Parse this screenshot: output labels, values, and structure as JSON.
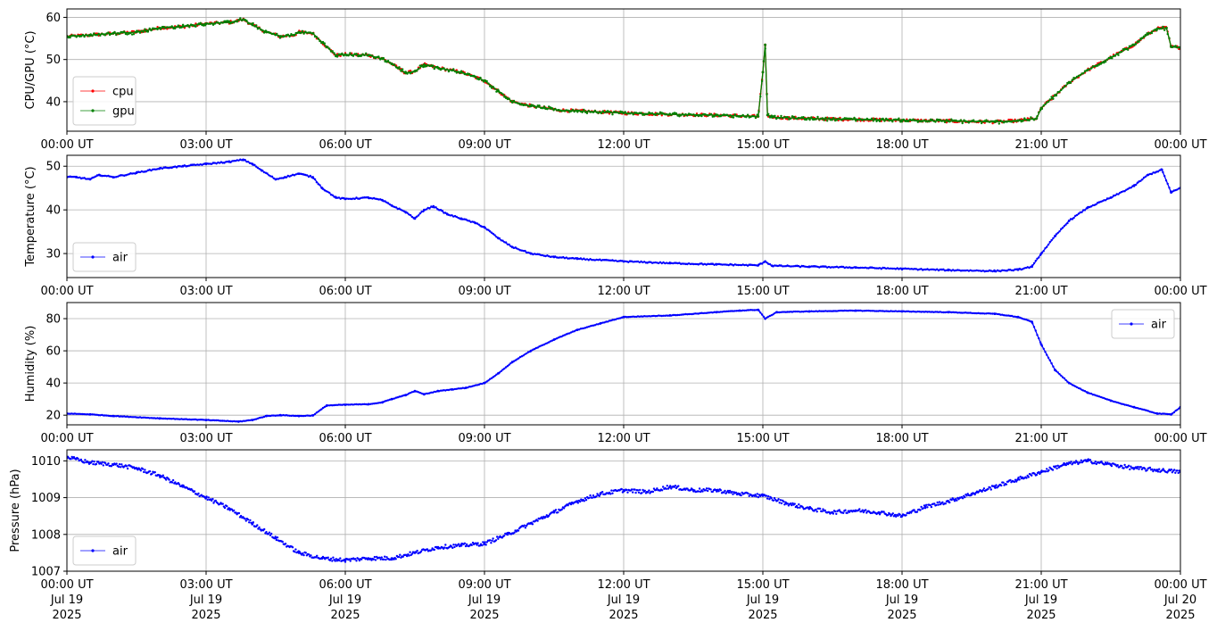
{
  "chart_data": [
    {
      "type": "line",
      "ylabel": "CPU/GPU (°C)",
      "ylim": [
        33,
        62
      ],
      "yticks": [
        40,
        50,
        60
      ],
      "legend": "lower-left",
      "grid": true,
      "series": [
        {
          "name": "cpu",
          "color": "#ff0000",
          "x": [
            0,
            0.5,
            1,
            1.5,
            2,
            2.5,
            3,
            3.5,
            3.8,
            4,
            4.3,
            4.6,
            4.9,
            5,
            5.3,
            5.6,
            5.8,
            6,
            6.5,
            6.8,
            7,
            7.3,
            7.5,
            7.7,
            8,
            8.5,
            9,
            9.3,
            9.6,
            10,
            10.3,
            10.6,
            11,
            12,
            13,
            14,
            14.9,
            15,
            15.05,
            15.1,
            15.2,
            16,
            17,
            18,
            19,
            20,
            20.5,
            20.9,
            21,
            21.3,
            21.6,
            22,
            22.5,
            23,
            23.3,
            23.5,
            23.7,
            23.8,
            24
          ],
          "y": [
            55.5,
            55.8,
            56.2,
            56.5,
            57.5,
            57.8,
            58.5,
            58.8,
            59.5,
            58.2,
            56.5,
            55.5,
            55.8,
            56.5,
            56.2,
            53,
            51,
            51.2,
            51,
            50.2,
            49,
            46.8,
            47.2,
            48.8,
            48,
            47,
            45,
            42.5,
            40,
            39,
            38.5,
            38,
            37.8,
            37.3,
            37,
            36.8,
            36.5,
            47,
            53.5,
            36.8,
            36.3,
            36,
            35.8,
            35.6,
            35.4,
            35.2,
            35.5,
            36,
            38.5,
            41.5,
            44.5,
            47.5,
            50.5,
            53.5,
            56,
            57.3,
            57.5,
            53,
            52.8
          ]
        },
        {
          "name": "gpu",
          "color": "#008000",
          "x": [
            0,
            0.5,
            1,
            1.5,
            2,
            2.5,
            3,
            3.5,
            3.8,
            4,
            4.3,
            4.6,
            4.9,
            5,
            5.3,
            5.6,
            5.8,
            6,
            6.5,
            6.8,
            7,
            7.3,
            7.5,
            7.7,
            8,
            8.5,
            9,
            9.3,
            9.6,
            10,
            10.3,
            10.6,
            11,
            12,
            13,
            14,
            14.9,
            15,
            15.05,
            15.1,
            15.2,
            16,
            17,
            18,
            19,
            20,
            20.5,
            20.9,
            21,
            21.3,
            21.6,
            22,
            22.5,
            23,
            23.3,
            23.5,
            23.7,
            23.8,
            24
          ],
          "y": [
            55.5,
            55.8,
            56.2,
            56.5,
            57.5,
            57.8,
            58.5,
            58.8,
            59.5,
            58.2,
            56.5,
            55.5,
            55.8,
            56.5,
            56.2,
            53,
            51,
            51.2,
            51,
            50.2,
            49,
            46.8,
            47.2,
            48.8,
            48,
            47,
            45,
            42.5,
            40,
            39,
            38.5,
            38,
            37.8,
            37.3,
            37,
            36.8,
            36.5,
            47,
            53.5,
            36.8,
            36.3,
            36,
            35.8,
            35.6,
            35.4,
            35.2,
            35.5,
            36,
            38.5,
            41.5,
            44.5,
            47.5,
            50.5,
            53.5,
            56,
            57.3,
            57.5,
            53,
            52.8
          ]
        }
      ]
    },
    {
      "type": "line",
      "ylabel": "Temperature (°C)",
      "ylim": [
        24.5,
        52.5
      ],
      "yticks": [
        30,
        40,
        50
      ],
      "legend": "lower-left",
      "grid": true,
      "series": [
        {
          "name": "air",
          "color": "#0000ff",
          "x": [
            0,
            0.2,
            0.5,
            0.7,
            1,
            1.5,
            2,
            2.5,
            3,
            3.5,
            3.8,
            4,
            4.2,
            4.5,
            4.7,
            5,
            5.3,
            5.5,
            5.8,
            6,
            6.5,
            6.8,
            7,
            7.3,
            7.5,
            7.7,
            7.9,
            8.2,
            8.5,
            8.8,
            9,
            9.3,
            9.6,
            10,
            10.5,
            11,
            12,
            13,
            14,
            14.9,
            15.05,
            15.2,
            16,
            17,
            18,
            19,
            20,
            20.5,
            20.8,
            21,
            21.3,
            21.6,
            22,
            22.5,
            23,
            23.3,
            23.6,
            23.8,
            24
          ],
          "y": [
            47.5,
            47.5,
            47,
            48,
            47.5,
            48.5,
            49.5,
            50,
            50.5,
            51,
            51.5,
            50.5,
            49,
            47,
            47.5,
            48.3,
            47.5,
            45,
            42.8,
            42.5,
            42.8,
            42.2,
            41,
            39.5,
            38,
            40,
            40.8,
            39,
            38,
            37,
            36,
            33.5,
            31.5,
            30,
            29.2,
            28.8,
            28.2,
            27.8,
            27.5,
            27.3,
            28.2,
            27.2,
            27,
            26.8,
            26.5,
            26.2,
            26,
            26.3,
            27,
            30,
            34,
            37.5,
            40.5,
            42.8,
            45.5,
            48,
            49.2,
            44,
            45
          ]
        }
      ]
    },
    {
      "type": "line",
      "ylabel": "Humidity (%)",
      "ylim": [
        14,
        90
      ],
      "yticks": [
        20,
        40,
        60,
        80
      ],
      "legend": "upper-right",
      "grid": true,
      "series": [
        {
          "name": "air",
          "color": "#0000ff",
          "x": [
            0,
            0.5,
            1,
            2,
            3,
            3.7,
            4,
            4.3,
            4.6,
            5,
            5.3,
            5.6,
            6,
            6.5,
            6.8,
            7,
            7.3,
            7.5,
            7.7,
            8,
            8.3,
            8.6,
            9,
            9.3,
            9.6,
            10,
            10.5,
            11,
            11.5,
            12,
            13,
            14,
            14.5,
            14.9,
            15.05,
            15.3,
            16,
            17,
            18,
            19,
            20,
            20.5,
            20.8,
            21,
            21.3,
            21.6,
            22,
            22.5,
            23,
            23.5,
            23.8,
            24
          ],
          "y": [
            21,
            20.5,
            19.5,
            18,
            17,
            16,
            17,
            19.5,
            20,
            19.5,
            19.8,
            26,
            26.5,
            26.8,
            28,
            30,
            32.5,
            35,
            33,
            35,
            36,
            37,
            40,
            46,
            53,
            60,
            67,
            73,
            77,
            81,
            82,
            84,
            85,
            85.5,
            80,
            84,
            84.5,
            85,
            84.5,
            84,
            83,
            81,
            78,
            64,
            48,
            40,
            34,
            29,
            25,
            21,
            20.5,
            25
          ]
        }
      ]
    },
    {
      "type": "scatter",
      "ylabel": "Pressure (hPa)",
      "ylim": [
        1007,
        1010.3
      ],
      "yticks": [
        1007,
        1008,
        1009,
        1010
      ],
      "legend": "lower-left",
      "grid": true,
      "series": [
        {
          "name": "air",
          "color": "#0000ff",
          "x": [
            0,
            0.5,
            1,
            1.5,
            2,
            2.5,
            3,
            3.5,
            4,
            4.5,
            5,
            5.5,
            6,
            6.5,
            7,
            7.5,
            8,
            8.5,
            9,
            9.5,
            10,
            10.5,
            11,
            11.5,
            12,
            12.5,
            13,
            13.5,
            14,
            14.5,
            15,
            15.5,
            16,
            16.5,
            17,
            17.5,
            18,
            18.5,
            19,
            19.5,
            20,
            20.5,
            21,
            21.5,
            22,
            22.5,
            23,
            23.5,
            24
          ],
          "y": [
            1010.1,
            1009.95,
            1009.9,
            1009.8,
            1009.6,
            1009.3,
            1009.0,
            1008.7,
            1008.3,
            1007.9,
            1007.5,
            1007.35,
            1007.3,
            1007.35,
            1007.35,
            1007.5,
            1007.65,
            1007.7,
            1007.75,
            1008.0,
            1008.3,
            1008.6,
            1008.9,
            1009.1,
            1009.2,
            1009.15,
            1009.3,
            1009.2,
            1009.2,
            1009.1,
            1009.05,
            1008.85,
            1008.7,
            1008.6,
            1008.65,
            1008.6,
            1008.5,
            1008.75,
            1008.9,
            1009.1,
            1009.3,
            1009.5,
            1009.7,
            1009.9,
            1010.0,
            1009.9,
            1009.8,
            1009.75,
            1009.7
          ]
        }
      ]
    }
  ],
  "x_axis": {
    "range_hours": [
      0,
      24
    ],
    "ticks_hours": [
      0,
      3,
      6,
      9,
      12,
      15,
      18,
      21,
      24
    ],
    "time_labels": [
      "00:00 UT",
      "03:00 UT",
      "06:00 UT",
      "09:00 UT",
      "12:00 UT",
      "15:00 UT",
      "18:00 UT",
      "21:00 UT",
      "00:00 UT"
    ],
    "date_labels": [
      "Jul 19",
      "Jul 19",
      "Jul 19",
      "Jul 19",
      "Jul 19",
      "Jul 19",
      "Jul 19",
      "Jul 19",
      "Jul 20"
    ],
    "year_labels": [
      "2025",
      "2025",
      "2025",
      "2025",
      "2025",
      "2025",
      "2025",
      "2025",
      "2025"
    ]
  }
}
